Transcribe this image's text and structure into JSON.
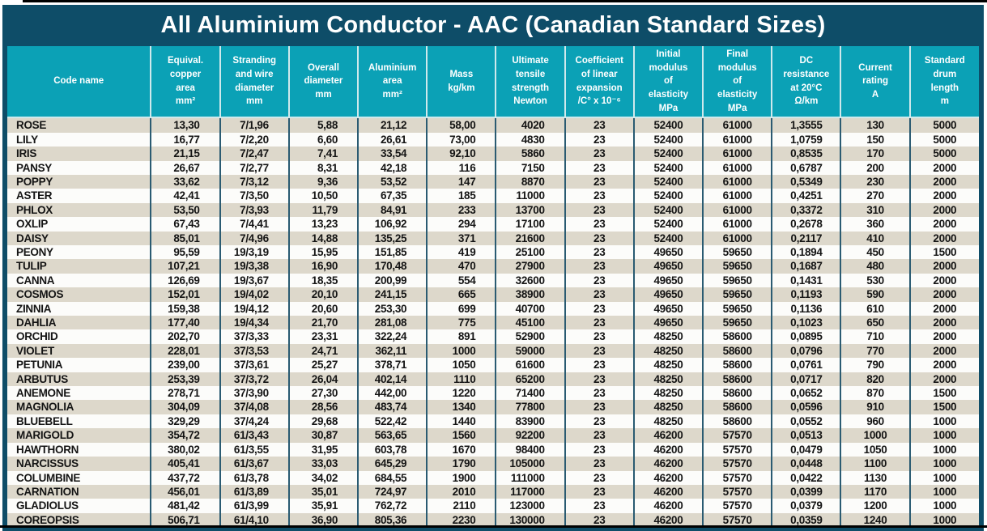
{
  "header": {
    "title": "All Aluminium Conductor - AAC (Canadian Standard Sizes)"
  },
  "colors": {
    "title_bar_navy": "#0e4d68",
    "header_teal": "#0ba1b6",
    "row_stripe_beige": "#ddd8cb",
    "row_stripe_white": "#fcfcfa",
    "column_separator_dark": "#2a5b72",
    "column_separator_light": "#cfe9ec",
    "text_ink": "#141414"
  },
  "table": {
    "columns": [
      {
        "id": "code-name",
        "label": "Code name"
      },
      {
        "id": "equiv-copper-area",
        "label": "Equival.\ncopper\narea\nmm²"
      },
      {
        "id": "stranding-wire-diameter",
        "label": "Stranding\nand wire\ndiameter\nmm"
      },
      {
        "id": "overall-diameter",
        "label": "Overall\ndiameter\nmm"
      },
      {
        "id": "aluminium-area",
        "label": "Aluminium\narea\nmm²"
      },
      {
        "id": "mass",
        "label": "Mass\nkg/km"
      },
      {
        "id": "ultimate-tensile-strength",
        "label": "Ultimate\ntensile\nstrength\nNewton"
      },
      {
        "id": "coefficient-linear-expansion",
        "label": "Coefficient\nof linear\nexpansion\n/C° x 10⁻⁶"
      },
      {
        "id": "initial-modulus-elasticity",
        "label": "Initial\nmodulus\nof\nelasticity\nMPa"
      },
      {
        "id": "final-modulus-elasticity",
        "label": "Final\nmodulus\nof\nelasticity\nMPa"
      },
      {
        "id": "dc-resistance",
        "label": "DC\nresistance\nat 20°C\nΩ/km"
      },
      {
        "id": "current-rating",
        "label": "Current\nrating\nA"
      },
      {
        "id": "standard-drum-length",
        "label": "Standard\ndrum\nlength\nm"
      }
    ],
    "rows": [
      [
        "ROSE",
        "13,30",
        "7/1,96",
        "5,88",
        "21,12",
        "58,00",
        "4020",
        "23",
        "52400",
        "61000",
        "1,3555",
        "130",
        "5000"
      ],
      [
        "LILY",
        "16,77",
        "7/2,20",
        "6,60",
        "26,61",
        "73,00",
        "4830",
        "23",
        "52400",
        "61000",
        "1,0759",
        "150",
        "5000"
      ],
      [
        "IRIS",
        "21,15",
        "7/2,47",
        "7,41",
        "33,54",
        "92,10",
        "5860",
        "23",
        "52400",
        "61000",
        "0,8535",
        "170",
        "5000"
      ],
      [
        "PANSY",
        "26,67",
        "7/2,77",
        "8,31",
        "42,18",
        "116",
        "7150",
        "23",
        "52400",
        "61000",
        "0,6787",
        "200",
        "2000"
      ],
      [
        "POPPY",
        "33,62",
        "7/3,12",
        "9,36",
        "53,52",
        "147",
        "8870",
        "23",
        "52400",
        "61000",
        "0,5349",
        "230",
        "2000"
      ],
      [
        "ASTER",
        "42,41",
        "7/3,50",
        "10,50",
        "67,35",
        "185",
        "11000",
        "23",
        "52400",
        "61000",
        "0,4251",
        "270",
        "2000"
      ],
      [
        "PHLOX",
        "53,50",
        "7/3,93",
        "11,79",
        "84,91",
        "233",
        "13700",
        "23",
        "52400",
        "61000",
        "0,3372",
        "310",
        "2000"
      ],
      [
        "OXLIP",
        "67,43",
        "7/4,41",
        "13,23",
        "106,92",
        "294",
        "17100",
        "23",
        "52400",
        "61000",
        "0,2678",
        "360",
        "2000"
      ],
      [
        "DAISY",
        "85,01",
        "7/4,96",
        "14,88",
        "135,25",
        "371",
        "21600",
        "23",
        "52400",
        "61000",
        "0,2117",
        "410",
        "2000"
      ],
      [
        "PEONY",
        "95,59",
        "19/3,19",
        "15,95",
        "151,85",
        "419",
        "25100",
        "23",
        "49650",
        "59650",
        "0,1894",
        "450",
        "1500"
      ],
      [
        "TULIP",
        "107,21",
        "19/3,38",
        "16,90",
        "170,48",
        "470",
        "27900",
        "23",
        "49650",
        "59650",
        "0,1687",
        "480",
        "2000"
      ],
      [
        "CANNA",
        "126,69",
        "19/3,67",
        "18,35",
        "200,99",
        "554",
        "32600",
        "23",
        "49650",
        "59650",
        "0,1431",
        "530",
        "2000"
      ],
      [
        "COSMOS",
        "152,01",
        "19/4,02",
        "20,10",
        "241,15",
        "665",
        "38900",
        "23",
        "49650",
        "59650",
        "0,1193",
        "590",
        "2000"
      ],
      [
        "ZINNIA",
        "159,38",
        "19/4,12",
        "20,60",
        "253,30",
        "699",
        "40700",
        "23",
        "49650",
        "59650",
        "0,1136",
        "610",
        "2000"
      ],
      [
        "DAHLIA",
        "177,40",
        "19/4,34",
        "21,70",
        "281,08",
        "775",
        "45100",
        "23",
        "49650",
        "59650",
        "0,1023",
        "650",
        "2000"
      ],
      [
        "ORCHID",
        "202,70",
        "37/3,33",
        "23,31",
        "322,24",
        "891",
        "52900",
        "23",
        "48250",
        "58600",
        "0,0895",
        "710",
        "2000"
      ],
      [
        "VIOLET",
        "228,01",
        "37/3,53",
        "24,71",
        "362,11",
        "1000",
        "59000",
        "23",
        "48250",
        "58600",
        "0,0796",
        "770",
        "2000"
      ],
      [
        "PETUNIA",
        "239,00",
        "37/3,61",
        "25,27",
        "378,71",
        "1050",
        "61600",
        "23",
        "48250",
        "58600",
        "0,0761",
        "790",
        "2000"
      ],
      [
        "ARBUTUS",
        "253,39",
        "37/3,72",
        "26,04",
        "402,14",
        "1110",
        "65200",
        "23",
        "48250",
        "58600",
        "0,0717",
        "820",
        "2000"
      ],
      [
        "ANEMONE",
        "278,71",
        "37/3,90",
        "27,30",
        "442,00",
        "1220",
        "71400",
        "23",
        "48250",
        "58600",
        "0,0652",
        "870",
        "1500"
      ],
      [
        "MAGNOLIA",
        "304,09",
        "37/4,08",
        "28,56",
        "483,74",
        "1340",
        "77800",
        "23",
        "48250",
        "58600",
        "0,0596",
        "910",
        "1500"
      ],
      [
        "BLUEBELL",
        "329,29",
        "37/4,24",
        "29,68",
        "522,42",
        "1440",
        "83900",
        "23",
        "48250",
        "58600",
        "0,0552",
        "960",
        "1000"
      ],
      [
        "MARIGOLD",
        "354,72",
        "61/3,43",
        "30,87",
        "563,65",
        "1560",
        "92200",
        "23",
        "46200",
        "57570",
        "0,0513",
        "1000",
        "1000"
      ],
      [
        "HAWTHORN",
        "380,02",
        "61/3,55",
        "31,95",
        "603,78",
        "1670",
        "98400",
        "23",
        "46200",
        "57570",
        "0,0479",
        "1050",
        "1000"
      ],
      [
        "NARCISSUS",
        "405,41",
        "61/3,67",
        "33,03",
        "645,29",
        "1790",
        "105000",
        "23",
        "46200",
        "57570",
        "0,0448",
        "1100",
        "1000"
      ],
      [
        "COLUMBINE",
        "437,72",
        "61/3,78",
        "34,02",
        "684,55",
        "1900",
        "111000",
        "23",
        "46200",
        "57570",
        "0,0422",
        "1130",
        "1000"
      ],
      [
        "CARNATION",
        "456,01",
        "61/3,89",
        "35,01",
        "724,97",
        "2010",
        "117000",
        "23",
        "46200",
        "57570",
        "0,0399",
        "1170",
        "1000"
      ],
      [
        "GLADIOLUS",
        "481,42",
        "61/3,99",
        "35,91",
        "762,72",
        "2110",
        "123000",
        "23",
        "46200",
        "57570",
        "0,0379",
        "1200",
        "1000"
      ],
      [
        "COREOPSIS",
        "506,71",
        "61/4,10",
        "36,90",
        "805,36",
        "2230",
        "130000",
        "23",
        "46200",
        "57570",
        "0,0359",
        "1240",
        "1000"
      ]
    ]
  }
}
